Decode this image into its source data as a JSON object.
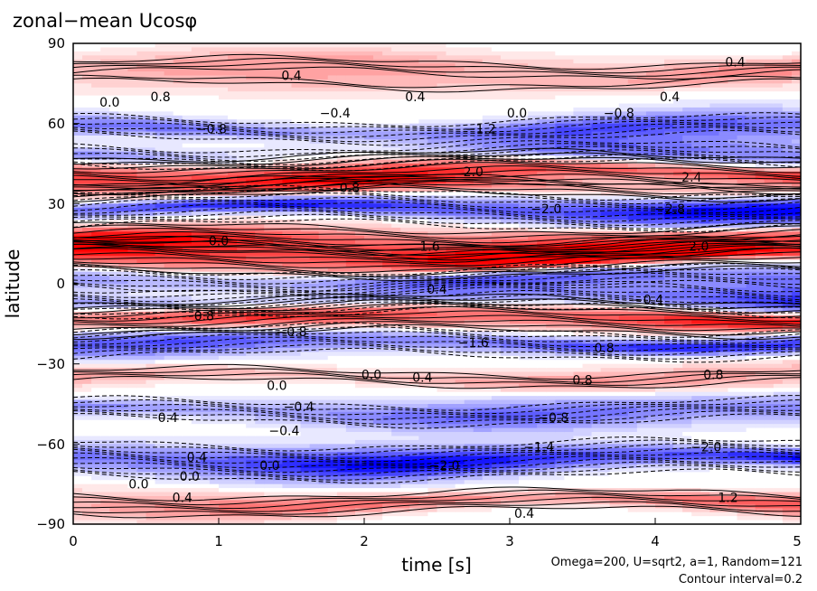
{
  "chart_data": {
    "type": "heatmap",
    "title": "zonal−mean Ucosφ",
    "xlabel": "time [s]",
    "ylabel": "latitude",
    "xlim": [
      0,
      5
    ],
    "ylim": [
      -90,
      90
    ],
    "x_ticks": [
      "0",
      "1",
      "2",
      "3",
      "4",
      "5"
    ],
    "y_ticks": [
      "−90",
      "−60",
      "−30",
      "0",
      "30",
      "60",
      "90"
    ],
    "annotations": [
      "Omega=200, U=sqrt2, a=1, Random=121",
      "Contour interval=0.2"
    ],
    "colormap": {
      "positive": "#ff0000",
      "negative": "#0000ff",
      "zero": "#ffffff"
    },
    "contour_interval": 0.2,
    "bands": [
      {
        "lat": 81,
        "value": 0.8
      },
      {
        "lat": 75,
        "value": 0.4
      },
      {
        "lat": 58,
        "value": -1.2
      },
      {
        "lat": 48,
        "value": -1.2
      },
      {
        "lat": 42,
        "value": 2.0
      },
      {
        "lat": 36,
        "value": 1.0
      },
      {
        "lat": 28,
        "value": -2.0
      },
      {
        "lat": 16,
        "value": 1.6
      },
      {
        "lat": 10,
        "value": 2.0
      },
      {
        "lat": 2,
        "value": -1.2
      },
      {
        "lat": -6,
        "value": -1.6
      },
      {
        "lat": -12,
        "value": 2.0
      },
      {
        "lat": -22,
        "value": -1.6
      },
      {
        "lat": -35,
        "value": 0.8
      },
      {
        "lat": -48,
        "value": -1.2
      },
      {
        "lat": -66,
        "value": -2.0
      },
      {
        "lat": -82,
        "value": 1.2
      }
    ],
    "contour_labels": [
      {
        "t": 1.5,
        "lat": 78,
        "text": "0.4"
      },
      {
        "t": 4.55,
        "lat": 83,
        "text": "0.4"
      },
      {
        "t": 0.6,
        "lat": 70,
        "text": "0.8"
      },
      {
        "t": 0.25,
        "lat": 68,
        "text": "0.0"
      },
      {
        "t": 2.35,
        "lat": 70,
        "text": "0.4"
      },
      {
        "t": 3.05,
        "lat": 64,
        "text": "0.0"
      },
      {
        "t": 4.1,
        "lat": 70,
        "text": "0.4"
      },
      {
        "t": 0.95,
        "lat": 58,
        "text": "−0.8"
      },
      {
        "t": 1.8,
        "lat": 64,
        "text": "−0.4"
      },
      {
        "t": 2.8,
        "lat": 58,
        "text": "−1.2"
      },
      {
        "t": 3.75,
        "lat": 64,
        "text": "−0.8"
      },
      {
        "t": 2.75,
        "lat": 42,
        "text": "2.0"
      },
      {
        "t": 4.25,
        "lat": 40,
        "text": "2.4"
      },
      {
        "t": 1.9,
        "lat": 36,
        "text": "0.8"
      },
      {
        "t": 3.25,
        "lat": 28,
        "text": "−2.0"
      },
      {
        "t": 4.1,
        "lat": 28,
        "text": "−2.8"
      },
      {
        "t": 2.45,
        "lat": 14,
        "text": "1.6"
      },
      {
        "t": 4.3,
        "lat": 14,
        "text": "2.0"
      },
      {
        "t": 1.0,
        "lat": 16,
        "text": "0.0"
      },
      {
        "t": 2.5,
        "lat": -2,
        "text": "0.4"
      },
      {
        "t": 3.95,
        "lat": -6,
        "text": "−0.4"
      },
      {
        "t": 0.9,
        "lat": -12,
        "text": "0.8"
      },
      {
        "t": 1.5,
        "lat": -18,
        "text": "−0.8"
      },
      {
        "t": 2.75,
        "lat": -22,
        "text": "−1.6"
      },
      {
        "t": 3.65,
        "lat": -24,
        "text": "0.8"
      },
      {
        "t": 2.05,
        "lat": -34,
        "text": "0.0"
      },
      {
        "t": 2.4,
        "lat": -35,
        "text": "0.4"
      },
      {
        "t": 3.5,
        "lat": -36,
        "text": "0.8"
      },
      {
        "t": 4.4,
        "lat": -34,
        "text": "0.8"
      },
      {
        "t": 1.4,
        "lat": -38,
        "text": "0.0"
      },
      {
        "t": 1.55,
        "lat": -46,
        "text": "−0.4"
      },
      {
        "t": 0.65,
        "lat": -50,
        "text": "0.4"
      },
      {
        "t": 1.45,
        "lat": -55,
        "text": "−0.4"
      },
      {
        "t": 3.3,
        "lat": -50,
        "text": "−0.8"
      },
      {
        "t": 0.85,
        "lat": -65,
        "text": "0.4"
      },
      {
        "t": 1.35,
        "lat": -68,
        "text": "0.0"
      },
      {
        "t": 2.55,
        "lat": -68,
        "text": "−2.0"
      },
      {
        "t": 3.2,
        "lat": -61,
        "text": "−1.4"
      },
      {
        "t": 4.35,
        "lat": -61,
        "text": "−2.0"
      },
      {
        "t": 0.8,
        "lat": -72,
        "text": "0.0"
      },
      {
        "t": 0.45,
        "lat": -75,
        "text": "0.0"
      },
      {
        "t": 0.75,
        "lat": -80,
        "text": "0.4"
      },
      {
        "t": 3.1,
        "lat": -86,
        "text": "0.4"
      },
      {
        "t": 4.5,
        "lat": -80,
        "text": "1.2"
      }
    ]
  }
}
